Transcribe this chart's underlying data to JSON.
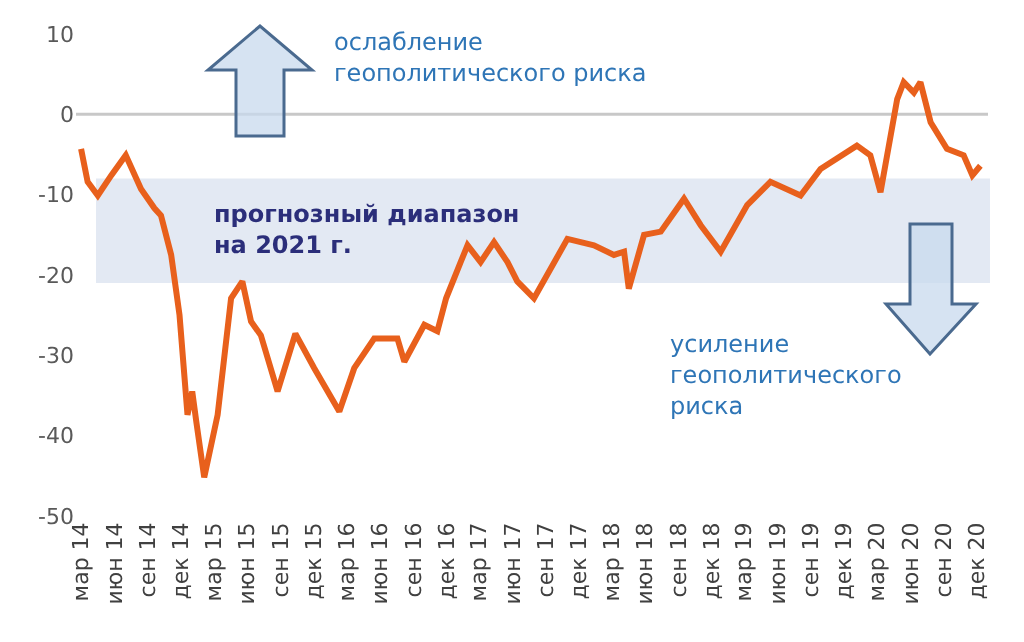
{
  "chart_data": {
    "type": "line",
    "x": [
      "2014-03-01",
      "2014-03-19",
      "2014-04-16",
      "2014-05-23",
      "2014-07-02",
      "2014-08-13",
      "2014-09-19",
      "2014-10-07",
      "2014-11-04",
      "2014-11-27",
      "2014-12-19",
      "2015-01-01",
      "2015-01-12",
      "2015-02-03",
      "2015-03-12",
      "2015-04-18",
      "2015-05-19",
      "2015-06-12",
      "2015-07-09",
      "2015-08-24",
      "2015-10-12",
      "2015-12-03",
      "2016-02-10",
      "2016-03-22",
      "2016-05-16",
      "2016-07-19",
      "2016-08-07",
      "2016-10-01",
      "2016-11-06",
      "2016-11-30",
      "2017-01-09",
      "2017-01-28",
      "2017-03-05",
      "2017-04-11",
      "2017-05-18",
      "2017-06-14",
      "2017-07-30",
      "2017-10-30",
      "2018-01-11",
      "2018-03-07",
      "2018-04-04",
      "2018-04-17",
      "2018-05-29",
      "2018-07-14",
      "2018-09-16",
      "2018-11-01",
      "2018-12-26",
      "2019-03-09",
      "2019-05-12",
      "2019-08-03",
      "2019-09-27",
      "2020-01-05",
      "2020-02-11",
      "2020-03-10",
      "2020-04-25",
      "2020-05-13",
      "2020-06-10",
      "2020-06-28",
      "2020-07-26",
      "2020-09-09",
      "2020-10-25",
      "2020-11-18",
      "2020-12-10"
    ],
    "series": [
      {
        "color": "#e8601c",
        "values": [
          -4.3,
          -8.4,
          -10.1,
          -7.6,
          -5.1,
          -9.3,
          -11.7,
          -12.6,
          -17.5,
          -25,
          -37.4,
          -34.5,
          -38.2,
          -45.2,
          -37.4,
          -22.9,
          -20.8,
          -25.8,
          -27.5,
          -34.5,
          -27.3,
          -31.6,
          -37,
          -31.6,
          -27.9,
          -27.9,
          -30.8,
          -26.2,
          -27,
          -22.9,
          -18.4,
          -16.3,
          -18.4,
          -15.9,
          -18.4,
          -20.8,
          -22.9,
          -15.5,
          -16.3,
          -17.5,
          -17.1,
          -21.7,
          -15,
          -14.6,
          -10.5,
          -13.8,
          -17.1,
          -11.3,
          -8.4,
          -10.1,
          -6.8,
          -3.9,
          -5.1,
          -9.7,
          1.9,
          4,
          2.7,
          4,
          -1,
          -4.3,
          -5.1,
          -7.6,
          -6.4
        ]
      }
    ],
    "ylim": [
      -50,
      10
    ],
    "yticks": [
      -50,
      -40,
      -30,
      -20,
      -10,
      0,
      10
    ],
    "xlim": [
      "2014-02-15",
      "2020-12-31"
    ],
    "xticks": [
      {
        "value": "2014-03-01",
        "label": "мар 14"
      },
      {
        "value": "2014-06-01",
        "label": "июн 14"
      },
      {
        "value": "2014-09-01",
        "label": "сен 14"
      },
      {
        "value": "2014-12-01",
        "label": "дек 14"
      },
      {
        "value": "2015-03-01",
        "label": "мар 15"
      },
      {
        "value": "2015-06-01",
        "label": "июн 15"
      },
      {
        "value": "2015-09-01",
        "label": "сен 15"
      },
      {
        "value": "2015-12-01",
        "label": "дек 15"
      },
      {
        "value": "2016-03-01",
        "label": "мар 16"
      },
      {
        "value": "2016-06-01",
        "label": "июн 16"
      },
      {
        "value": "2016-09-01",
        "label": "сен 16"
      },
      {
        "value": "2016-12-01",
        "label": "дек 16"
      },
      {
        "value": "2017-03-01",
        "label": "мар 17"
      },
      {
        "value": "2017-06-01",
        "label": "июн 17"
      },
      {
        "value": "2017-09-01",
        "label": "сен 17"
      },
      {
        "value": "2017-12-01",
        "label": "дек 17"
      },
      {
        "value": "2018-03-01",
        "label": "мар 18"
      },
      {
        "value": "2018-06-01",
        "label": "июн 18"
      },
      {
        "value": "2018-09-01",
        "label": "сен 18"
      },
      {
        "value": "2018-12-01",
        "label": "дек 18"
      },
      {
        "value": "2019-03-01",
        "label": "мар 19"
      },
      {
        "value": "2019-06-01",
        "label": "июн 19"
      },
      {
        "value": "2019-09-01",
        "label": "сен 19"
      },
      {
        "value": "2019-12-01",
        "label": "дек 19"
      },
      {
        "value": "2020-03-01",
        "label": "мар 20"
      },
      {
        "value": "2020-06-01",
        "label": "июн 20"
      },
      {
        "value": "2020-09-01",
        "label": "сен 20"
      },
      {
        "value": "2020-12-01",
        "label": "дек 20"
      }
    ],
    "ref_lines": [
      {
        "axis": "y",
        "value": 0,
        "color": "#c8c8c8"
      }
    ],
    "bands": [
      {
        "axis": "y",
        "from": -8,
        "to": -21,
        "label": "прогнозный диапазон\nна 2021 г.",
        "color": "#e3e9f3"
      }
    ],
    "annotations": [
      "ослабление\nгеополитического риска",
      "усиление\nгеополитического\nриска"
    ],
    "grid": false,
    "marker": "none",
    "line_style": "solid"
  }
}
